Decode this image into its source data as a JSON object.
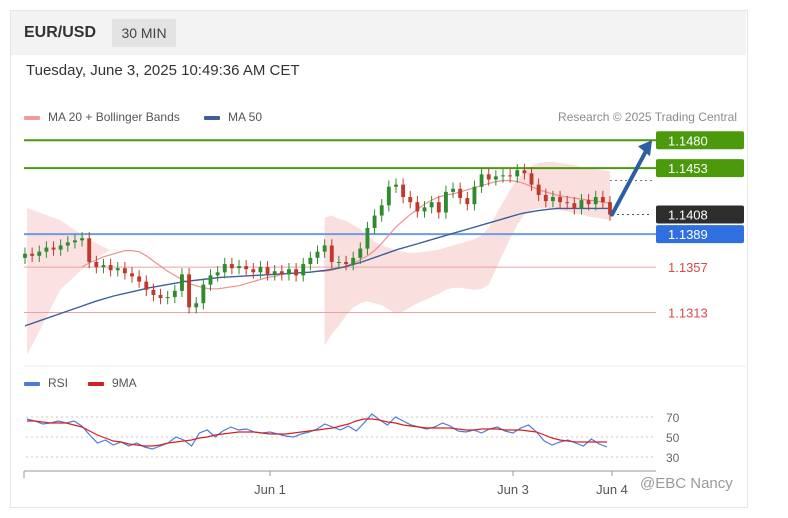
{
  "header": {
    "symbol": "EUR/USD",
    "timeframe": "30 MIN"
  },
  "timestamp": "Tuesday, June 3, 2025 10:49:36 AM CET",
  "legend": {
    "ma20": "MA 20 + Bollinger Bands",
    "ma50": "MA 50"
  },
  "credit": "Research © 2025 Trading Central",
  "rsi_legend": {
    "rsi": "RSI",
    "ma9": "9MA"
  },
  "watermark": "@EBC Nancy",
  "colors": {
    "green": "#4a9a0c",
    "blue": "#2f6fe0",
    "red": "#d84a4a",
    "dark": "#333333",
    "bollinger": "#f7c9c9",
    "ma50": "#3c5f99",
    "rsi": "#4a7bd8",
    "rsi_ma": "#d62020"
  },
  "chart_data": [
    {
      "type": "candlestick",
      "title": "EUR/USD 30 MIN",
      "xlabel": "",
      "ylabel": "",
      "ylim": [
        1.1265,
        1.149
      ],
      "x_ticks": [
        "Jun 1",
        "Jun 3",
        "Jun 4"
      ],
      "levels": [
        {
          "value": 1.148,
          "label": "1.1480",
          "style": "green-line"
        },
        {
          "value": 1.1453,
          "label": "1.1453",
          "style": "green-line"
        },
        {
          "value": 1.1408,
          "label": "1.1408",
          "style": "current-price"
        },
        {
          "value": 1.1389,
          "label": "1.1389",
          "style": "blue-line"
        },
        {
          "value": 1.1357,
          "label": "1.1357",
          "style": "red-line"
        },
        {
          "value": 1.1313,
          "label": "1.1313",
          "style": "red-line"
        }
      ],
      "close": [
        1.137,
        1.1368,
        1.1372,
        1.1376,
        1.1374,
        1.1378,
        1.1381,
        1.1383,
        1.1385,
        1.1362,
        1.1357,
        1.1359,
        1.1354,
        1.1356,
        1.1351,
        1.1348,
        1.1343,
        1.1335,
        1.133,
        1.1327,
        1.1328,
        1.1334,
        1.135,
        1.1318,
        1.1322,
        1.134,
        1.1349,
        1.1352,
        1.136,
        1.1356,
        1.1358,
        1.1355,
        1.1352,
        1.1357,
        1.135,
        1.1353,
        1.135,
        1.1355,
        1.1349,
        1.136,
        1.1366,
        1.1372,
        1.1378,
        1.1362,
        1.1362,
        1.136,
        1.1366,
        1.1375,
        1.1395,
        1.1407,
        1.1417,
        1.1435,
        1.1437,
        1.1425,
        1.142,
        1.1411,
        1.1415,
        1.142,
        1.141,
        1.143,
        1.1433,
        1.1424,
        1.1418,
        1.1435,
        1.1447,
        1.1442,
        1.1445,
        1.1446,
        1.1445,
        1.1451,
        1.1448,
        1.1437,
        1.1427,
        1.1421,
        1.1425,
        1.142,
        1.1419,
        1.1414,
        1.1422,
        1.1418,
        1.1425,
        1.142,
        1.1408
      ],
      "ma20": [
        1.1357,
        1.1361,
        1.1364,
        1.1367,
        1.1369,
        1.1371,
        1.1373,
        1.1373,
        1.1372,
        1.1368,
        1.1363,
        1.1358,
        1.1353,
        1.1349,
        1.1345,
        1.1341,
        1.1339,
        1.1337,
        1.1336,
        1.1336,
        1.1337,
        1.1338,
        1.1339,
        1.1341,
        1.1343,
        1.1345,
        1.1347,
        1.1348,
        1.135,
        1.1351,
        1.1351,
        1.1352,
        1.1352,
        1.1353,
        1.1353,
        1.1354,
        1.1356,
        1.1358,
        1.1361,
        1.1364,
        1.1368,
        1.1373,
        1.138,
        1.1388,
        1.1396,
        1.1402,
        1.1408,
        1.1413,
        1.1418,
        1.1422,
        1.1425,
        1.1427,
        1.1428,
        1.143,
        1.1432,
        1.1434,
        1.1436,
        1.1438,
        1.144,
        1.1441,
        1.1441,
        1.144,
        1.1438,
        1.1435,
        1.1432,
        1.143,
        1.1428,
        1.1426,
        1.1425,
        1.1424,
        1.1423,
        1.1422,
        1.1421,
        1.142,
        1.1419
      ],
      "upper_band": [
        1.1405,
        1.1407,
        1.1404,
        1.1402,
        1.1398,
        1.1394,
        1.1388,
        1.1382,
        1.1378,
        1.1376,
        1.1373,
        1.1372,
        1.1371,
        1.1371,
        1.1372,
        1.1373,
        1.1374,
        1.1376,
        1.1378,
        1.138,
        1.1382,
        1.1384,
        1.1388,
        1.1395,
        1.1408,
        1.142,
        1.1432,
        1.1442,
        1.145,
        1.1455,
        1.1458,
        1.1459,
        1.1459,
        1.1458,
        1.1457,
        1.1456,
        1.1454,
        1.1453,
        1.1452,
        1.1451,
        1.145
      ],
      "lower_band": [
        1.1281,
        1.1292,
        1.13,
        1.131,
        1.1318,
        1.1322,
        1.1324,
        1.1322,
        1.132,
        1.1316,
        1.1312,
        1.1314,
        1.1318,
        1.1322,
        1.1325,
        1.1328,
        1.1331,
        1.1335,
        1.1337,
        1.1337,
        1.1336,
        1.1335,
        1.1336,
        1.134,
        1.1355,
        1.137,
        1.1385,
        1.1398,
        1.1408,
        1.1412,
        1.1414,
        1.1414,
        1.1413,
        1.1412,
        1.1411,
        1.1409,
        1.1408,
        1.1406,
        1.1405,
        1.1404,
        1.1403
      ],
      "ma50": [
        1.13,
        1.1306,
        1.1312,
        1.1318,
        1.1324,
        1.1329,
        1.1333,
        1.1337,
        1.134,
        1.1343,
        1.1345,
        1.1347,
        1.1348,
        1.1349,
        1.135,
        1.1351,
        1.1352,
        1.1354,
        1.1357,
        1.1362,
        1.1368,
        1.1374,
        1.1379,
        1.1384,
        1.1389,
        1.1394,
        1.1399,
        1.1404,
        1.1409,
        1.1412,
        1.1414,
        1.1414,
        1.1414,
        1.1414
      ]
    },
    {
      "type": "line",
      "title": "",
      "ylim": [
        25,
        85
      ],
      "yticks": [
        70,
        50,
        30
      ],
      "series": [
        {
          "name": "RSI",
          "values": [
            68,
            66,
            63,
            64,
            66,
            64,
            66,
            61,
            52,
            44,
            47,
            42,
            45,
            41,
            44,
            40,
            38,
            41,
            44,
            50,
            47,
            41,
            54,
            57,
            50,
            56,
            60,
            57,
            58,
            55,
            54,
            55,
            53,
            51,
            50,
            53,
            55,
            58,
            63,
            60,
            57,
            61,
            56,
            64,
            73,
            67,
            62,
            70,
            66,
            62,
            60,
            58,
            60,
            64,
            61,
            56,
            55,
            57,
            54,
            58,
            60,
            56,
            54,
            59,
            62,
            55,
            46,
            42,
            45,
            47,
            44,
            41,
            48,
            43,
            40
          ]
        },
        {
          "name": "9MA",
          "values": [
            66,
            66,
            65,
            64,
            64,
            64,
            62,
            60,
            56,
            52,
            49,
            46,
            45,
            43,
            42,
            41,
            41,
            42,
            44,
            45,
            46,
            47,
            49,
            50,
            52,
            53,
            54,
            55,
            55,
            55,
            54,
            53,
            53,
            53,
            54,
            55,
            56,
            57,
            58,
            59,
            61,
            63,
            66,
            68,
            68,
            67,
            65,
            64,
            62,
            61,
            60,
            59,
            59,
            59,
            59,
            58,
            57,
            57,
            58,
            58,
            58,
            57,
            57,
            57,
            56,
            55,
            52,
            49,
            47,
            46,
            45,
            45,
            45,
            45,
            45
          ]
        }
      ]
    }
  ]
}
